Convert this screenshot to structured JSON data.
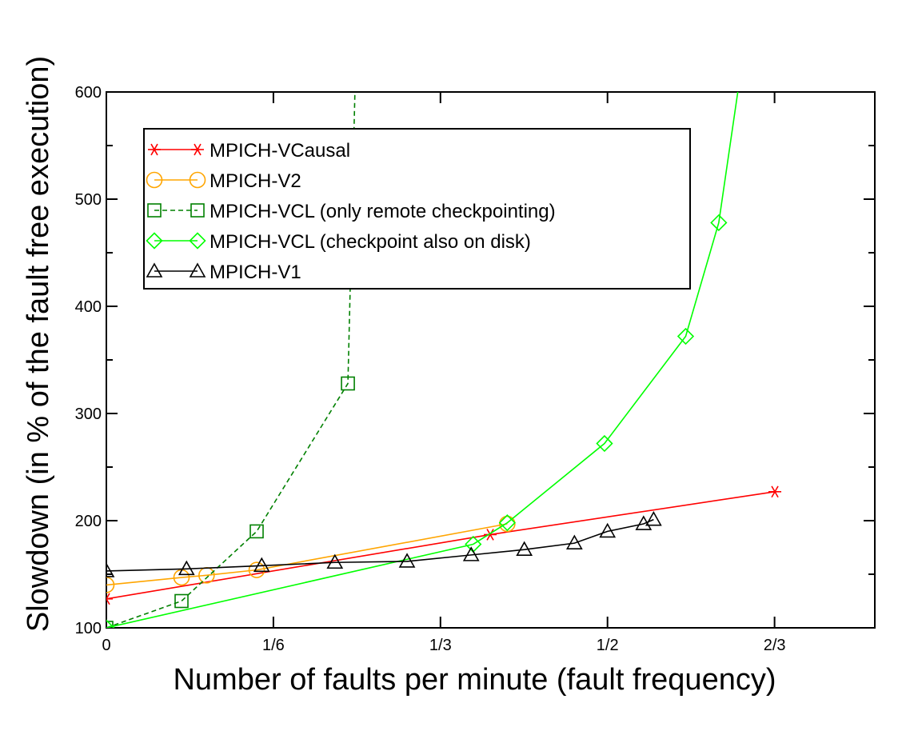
{
  "chart_data": {
    "type": "line",
    "title": "",
    "xlabel": "Number of faults per minute (fault frequency)",
    "ylabel": "Slowdown (in % of the fault free execution)",
    "xlim": [
      0,
      0.7667
    ],
    "ylim": [
      100,
      600
    ],
    "x_ticks": [
      {
        "value": 0,
        "label": "0"
      },
      {
        "value": 0.16667,
        "label": "1/6"
      },
      {
        "value": 0.33333,
        "label": "1/3"
      },
      {
        "value": 0.5,
        "label": "1/2"
      },
      {
        "value": 0.66667,
        "label": "2/3"
      }
    ],
    "y_ticks": [
      {
        "value": 100,
        "label": "100"
      },
      {
        "value": 150,
        "label": ""
      },
      {
        "value": 200,
        "label": "200"
      },
      {
        "value": 250,
        "label": ""
      },
      {
        "value": 300,
        "label": "300"
      },
      {
        "value": 350,
        "label": ""
      },
      {
        "value": 400,
        "label": "400"
      },
      {
        "value": 450,
        "label": ""
      },
      {
        "value": 500,
        "label": "500"
      },
      {
        "value": 550,
        "label": ""
      },
      {
        "value": 600,
        "label": "600"
      }
    ],
    "grid": false,
    "legend_position": "top-left",
    "series": [
      {
        "name": "MPICH-VCausal",
        "color": "#ff0000",
        "marker": "star",
        "dash": "solid",
        "points": [
          [
            0,
            127
          ],
          [
            0.383,
            187
          ],
          [
            0.667,
            227
          ]
        ]
      },
      {
        "name": "MPICH-V2",
        "color": "#ffa500",
        "marker": "circle",
        "dash": "solid",
        "points": [
          [
            0,
            140
          ],
          [
            0.075,
            147
          ],
          [
            0.1,
            149
          ],
          [
            0.15,
            154
          ],
          [
            0.4,
            197
          ]
        ]
      },
      {
        "name": "MPICH-VCL (only remote checkpointing)",
        "color": "#008000",
        "marker": "square",
        "dash": "dashed",
        "points": [
          [
            0,
            100
          ],
          [
            0.075,
            125
          ],
          [
            0.15,
            190
          ],
          [
            0.241,
            328
          ],
          [
            0.248,
            600
          ]
        ]
      },
      {
        "name": "MPICH-VCL (checkpoint also on disk)",
        "color": "#00ff00",
        "marker": "diamond",
        "dash": "solid",
        "points": [
          [
            0,
            100
          ],
          [
            0.366,
            178
          ],
          [
            0.4,
            198
          ],
          [
            0.497,
            272
          ],
          [
            0.578,
            372
          ],
          [
            0.611,
            478
          ],
          [
            0.63,
            600
          ]
        ]
      },
      {
        "name": "MPICH-V1",
        "color": "#000000",
        "marker": "triangle",
        "dash": "solid",
        "points": [
          [
            0,
            153
          ],
          [
            0.08,
            155
          ],
          [
            0.155,
            158
          ],
          [
            0.228,
            161
          ],
          [
            0.3,
            162
          ],
          [
            0.364,
            168
          ],
          [
            0.417,
            173
          ],
          [
            0.467,
            179
          ],
          [
            0.5,
            190
          ],
          [
            0.536,
            197
          ],
          [
            0.546,
            201
          ]
        ]
      }
    ]
  }
}
